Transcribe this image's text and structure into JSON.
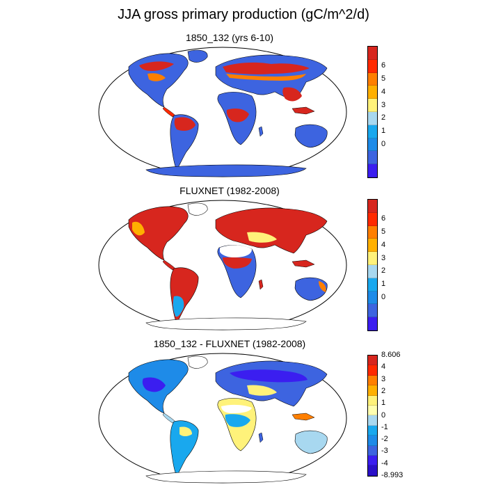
{
  "figure": {
    "title": "JJA gross primary production (gC/m^2/d)"
  },
  "panels": [
    {
      "id": "model",
      "title": "1850_132 (yrs 6-10)",
      "colorbar": {
        "labels": [
          "6",
          "5",
          "4",
          "3",
          "2",
          "1",
          "0"
        ],
        "colors": [
          "#d7261e",
          "#ff2a00",
          "#ff7f00",
          "#ffb000",
          "#fff27a",
          "#a8d8f0",
          "#19a8ee",
          "#1e8be8",
          "#3d64e0",
          "#3b1ef0"
        ]
      }
    },
    {
      "id": "obs",
      "title": "FLUXNET (1982-2008)",
      "colorbar": {
        "labels": [
          "6",
          "5",
          "4",
          "3",
          "2",
          "1",
          "0"
        ],
        "colors": [
          "#d7261e",
          "#ff2a00",
          "#ff7f00",
          "#ffb000",
          "#fff27a",
          "#a8d8f0",
          "#19a8ee",
          "#1e8be8",
          "#3d64e0",
          "#3b1ef0"
        ]
      }
    },
    {
      "id": "diff",
      "title": "1850_132 - FLUXNET (1982-2008)",
      "colorbar": {
        "labels": [
          "8.606",
          "4",
          "3",
          "2",
          "1",
          "0",
          "-1",
          "-2",
          "-3",
          "-4",
          "-8.993"
        ],
        "colors": [
          "#d7261e",
          "#ff2a00",
          "#ff7f00",
          "#ffb000",
          "#fff27a",
          "#ffffb0",
          "#a8d8f0",
          "#19a8ee",
          "#1e8be8",
          "#3d64e0",
          "#3b1ef0",
          "#2a10c8"
        ]
      }
    }
  ]
}
